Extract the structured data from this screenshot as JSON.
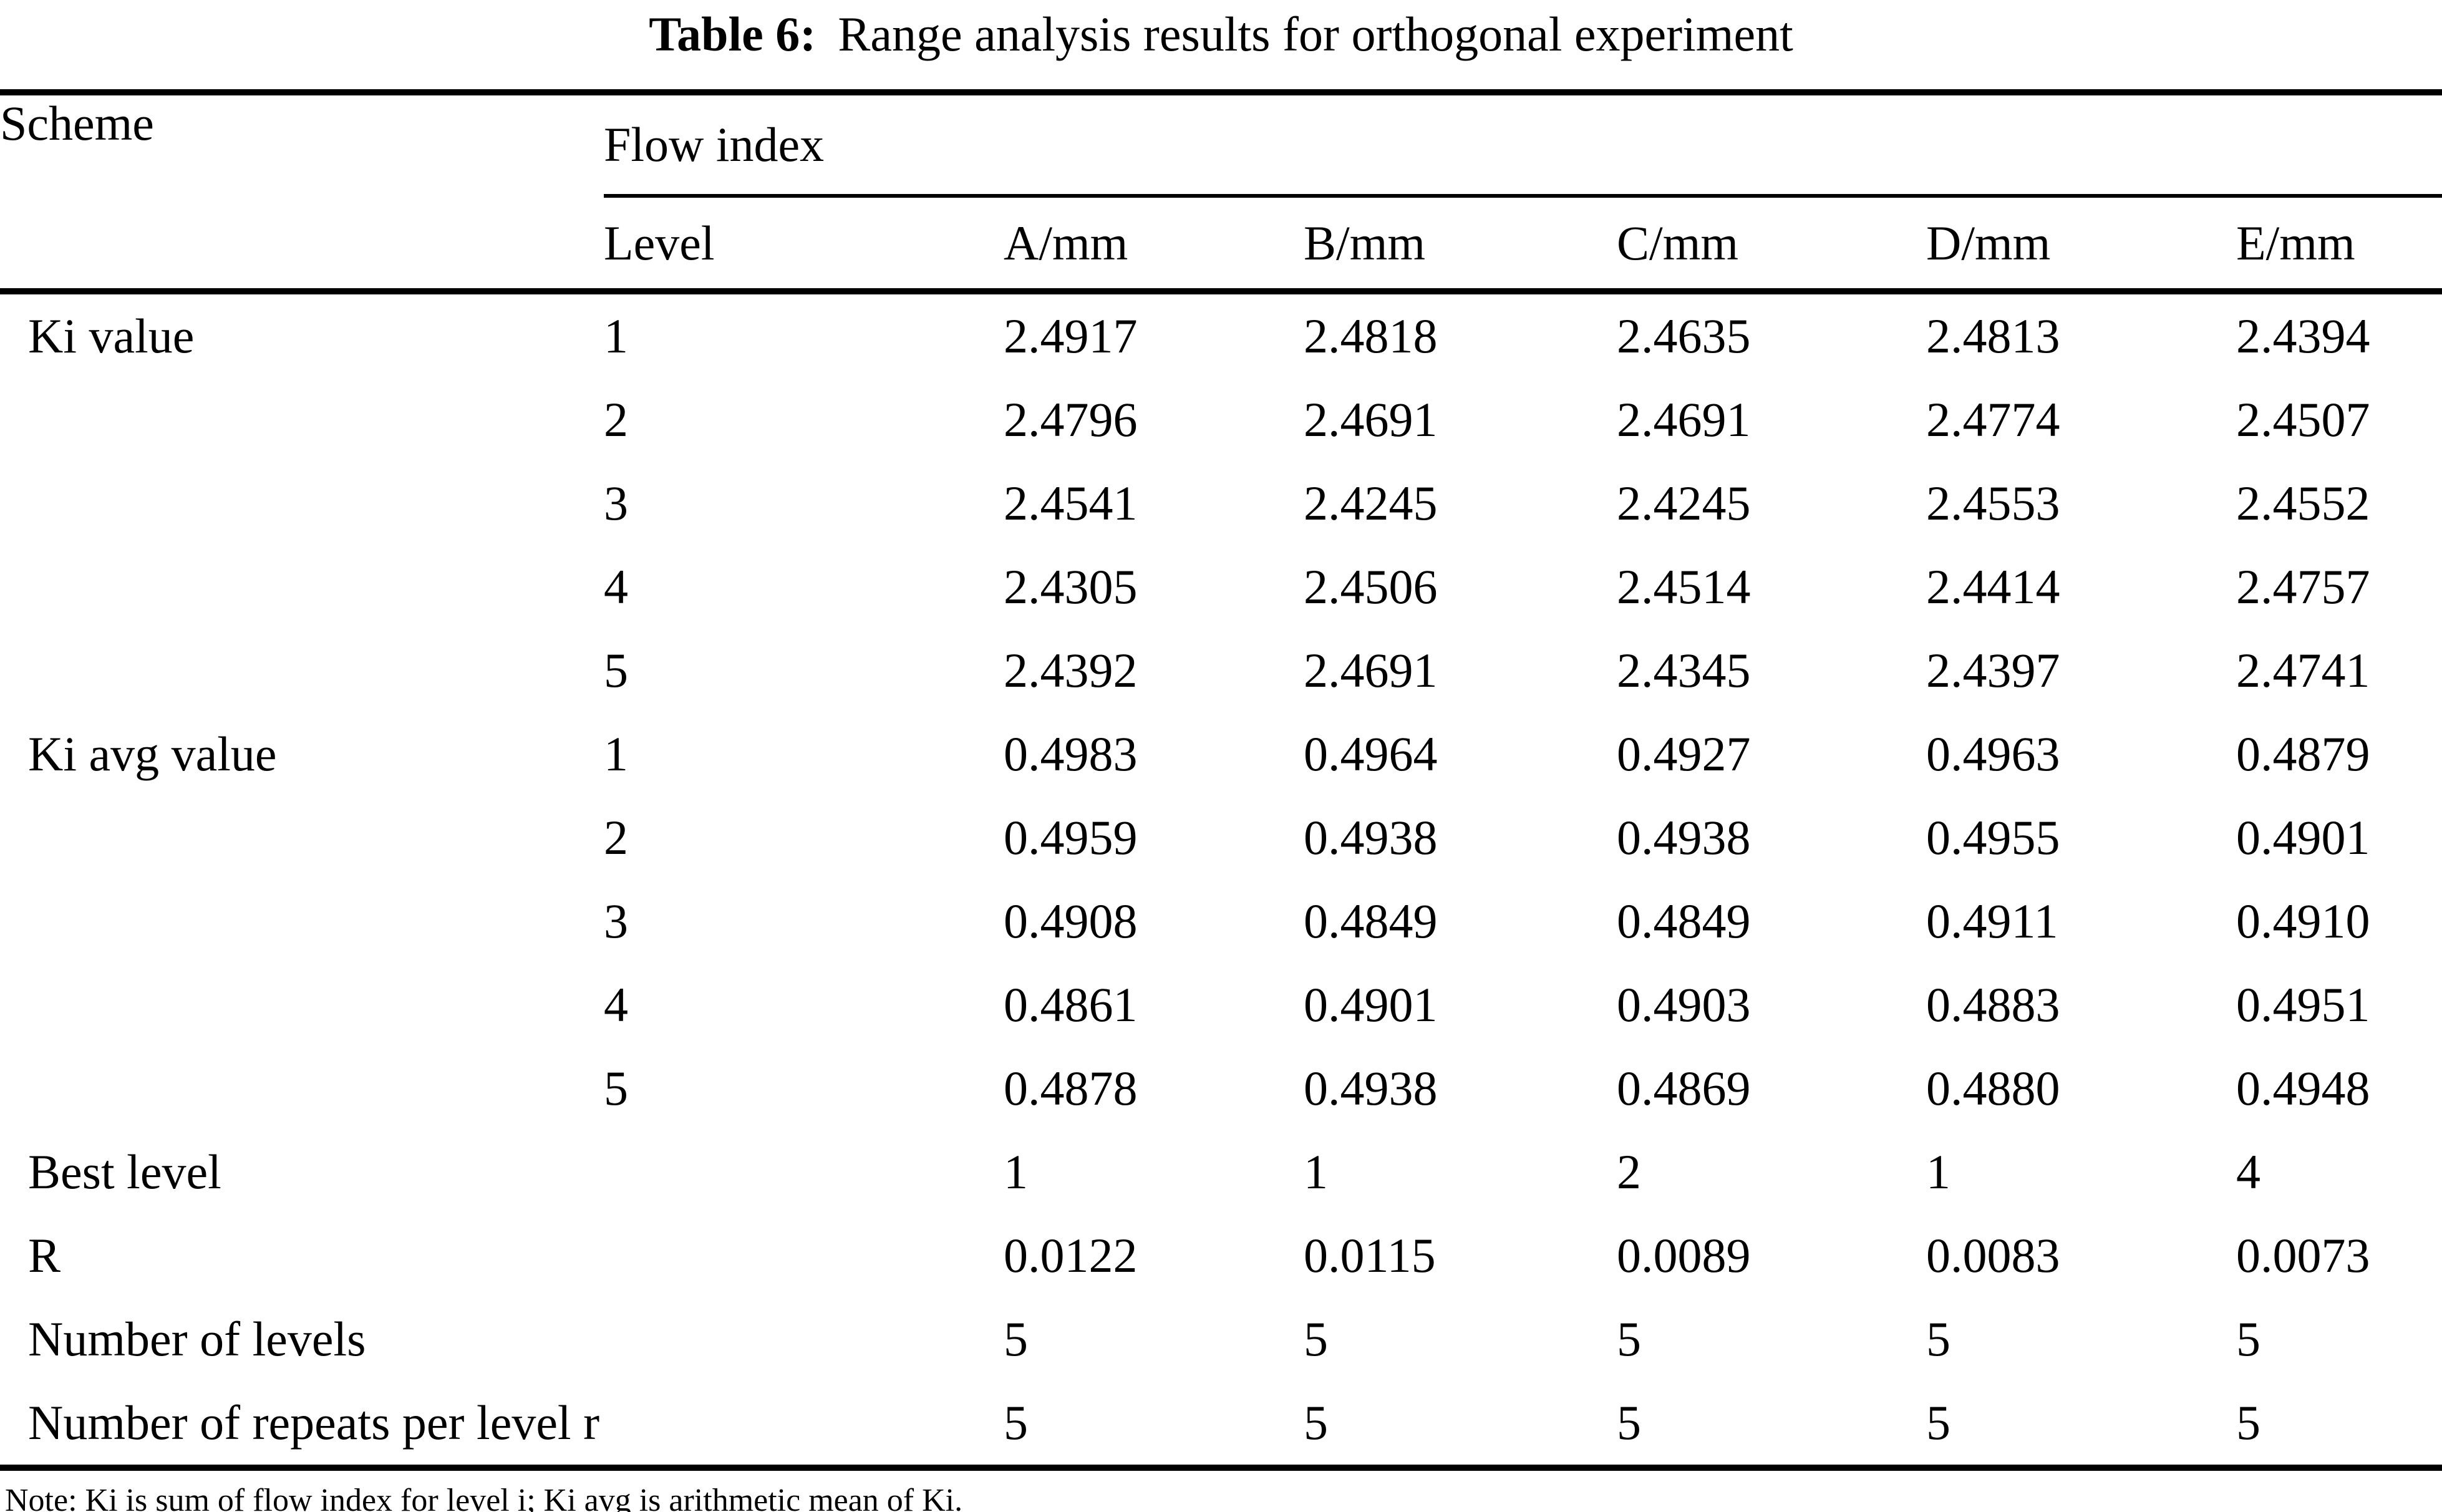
{
  "title": {
    "label": "Table 6:",
    "text": "Range analysis results for orthogonal experiment"
  },
  "table": {
    "scheme_header": "Scheme",
    "group_header": "Flow index",
    "columns": [
      "Level",
      "A/mm",
      "B/mm",
      "C/mm",
      "D/mm",
      "E/mm"
    ],
    "rows": [
      {
        "label": "Ki value",
        "level": "1",
        "values": [
          "2.4917",
          "2.4818",
          "2.4635",
          "2.4813",
          "2.4394"
        ]
      },
      {
        "label": "",
        "level": "2",
        "values": [
          "2.4796",
          "2.4691",
          "2.4691",
          "2.4774",
          "2.4507"
        ]
      },
      {
        "label": "",
        "level": "3",
        "values": [
          "2.4541",
          "2.4245",
          "2.4245",
          "2.4553",
          "2.4552"
        ]
      },
      {
        "label": "",
        "level": "4",
        "values": [
          "2.4305",
          "2.4506",
          "2.4514",
          "2.4414",
          "2.4757"
        ]
      },
      {
        "label": "",
        "level": "5",
        "values": [
          "2.4392",
          "2.4691",
          "2.4345",
          "2.4397",
          "2.4741"
        ]
      },
      {
        "label": "Ki avg value",
        "level": "1",
        "values": [
          "0.4983",
          "0.4964",
          "0.4927",
          "0.4963",
          "0.4879"
        ]
      },
      {
        "label": "",
        "level": "2",
        "values": [
          "0.4959",
          "0.4938",
          "0.4938",
          "0.4955",
          "0.4901"
        ]
      },
      {
        "label": "",
        "level": "3",
        "values": [
          "0.4908",
          "0.4849",
          "0.4849",
          "0.4911",
          "0.4910"
        ]
      },
      {
        "label": "",
        "level": "4",
        "values": [
          "0.4861",
          "0.4901",
          "0.4903",
          "0.4883",
          "0.4951"
        ]
      },
      {
        "label": "",
        "level": "5",
        "values": [
          "0.4878",
          "0.4938",
          "0.4869",
          "0.4880",
          "0.4948"
        ]
      },
      {
        "label": "Best level",
        "level": "",
        "values": [
          "1",
          "1",
          "2",
          "1",
          "4"
        ]
      },
      {
        "label": "R",
        "level": "",
        "values": [
          "0.0122",
          "0.0115",
          "0.0089",
          "0.0083",
          "0.0073"
        ]
      },
      {
        "label": "Number of levels",
        "level": "",
        "values": [
          "5",
          "5",
          "5",
          "5",
          "5"
        ]
      },
      {
        "label": "Number of repeats per level r",
        "level": "",
        "values": [
          "5",
          "5",
          "5",
          "5",
          "5"
        ]
      }
    ]
  },
  "note": "Note: Ki is sum of flow index for level i; Ki avg is arithmetic mean of Ki.",
  "colors": {
    "text": "#000000",
    "background": "#ffffff",
    "rule": "#000000"
  }
}
